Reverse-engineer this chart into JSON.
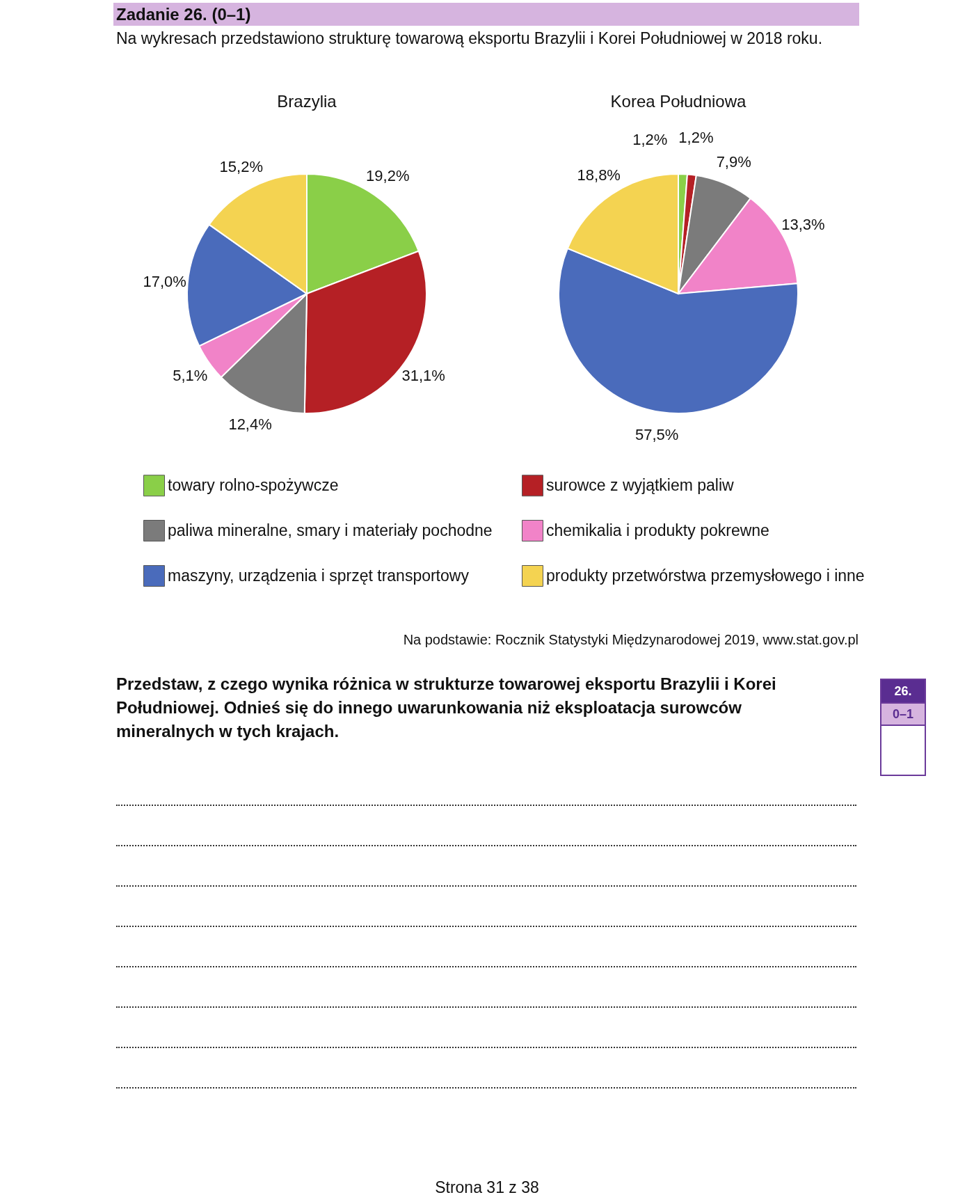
{
  "chart_data": [
    {
      "type": "pie",
      "title": "Brazylia",
      "categories": [
        "towary rolno-spożywcze",
        "surowce z wyjątkiem paliw",
        "paliwa mineralne, smary i materiały pochodne",
        "chemikalia i produkty pokrewne",
        "maszyny, urządzenia i sprzęt transportowy",
        "produkty przetwórstwa przemysłowego i inne"
      ],
      "values": [
        19.2,
        31.1,
        12.4,
        5.1,
        17.0,
        15.2
      ],
      "value_labels": [
        "19,2%",
        "31,1%",
        "12,4%",
        "5,1%",
        "17,0%",
        "15,2%"
      ],
      "colors": [
        "#8acf48",
        "#b52025",
        "#7b7b7b",
        "#f183c8",
        "#4a6bbb",
        "#f4d351"
      ],
      "legend": "bottom",
      "annotations": [
        "Zadanie 26. (0–1)",
        "Na wykresach przedstawiono strukturę towarową eksportu Brazylii i Korei Południowej w 2018 roku.",
        "Na podstawie: Rocznik Statystyki Międzynarodowej 2019, www.stat.gov.pl",
        "Przedstaw, z czego wynika różnica w strukturze towarowej eksportu Brazylii i Korei Południowej. Odnieś się do innego uwarunkowania niż eksploatacja surowców mineralnych w tych krajach.",
        "26.",
        "0–1",
        "Strona 31 z 38"
      ]
    },
    {
      "type": "pie",
      "title": "Korea Południowa",
      "categories": [
        null,
        null,
        null,
        null,
        null,
        null
      ],
      "values": [
        1.2,
        1.2,
        7.9,
        13.3,
        57.5,
        18.8
      ],
      "value_labels": [
        "1,2%",
        "1,2%",
        "7,9%",
        "13,3%",
        "57,5%",
        "18,8%"
      ],
      "colors": [
        "#8acf48",
        "#b52025",
        "#7b7b7b",
        "#f183c8",
        "#4a6bbb",
        "#f4d351"
      ]
    }
  ]
}
